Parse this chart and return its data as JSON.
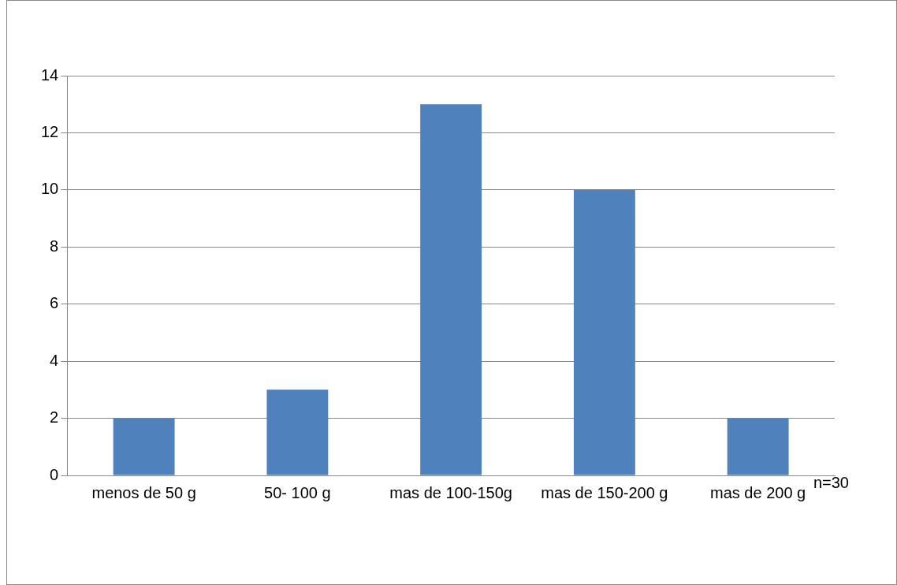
{
  "chart_data": {
    "type": "bar",
    "categories": [
      "menos de 50 g",
      "50- 100 g",
      "mas de 100-150g",
      "mas de 150-200 g",
      "mas de 200 g"
    ],
    "values": [
      2,
      3,
      13,
      10,
      2
    ],
    "color": "#4f81bd",
    "ylim": [
      0,
      14
    ],
    "yticks": [
      0,
      2,
      4,
      6,
      8,
      10,
      12,
      14
    ],
    "grid": "y",
    "annotations": [
      "n=30"
    ]
  }
}
